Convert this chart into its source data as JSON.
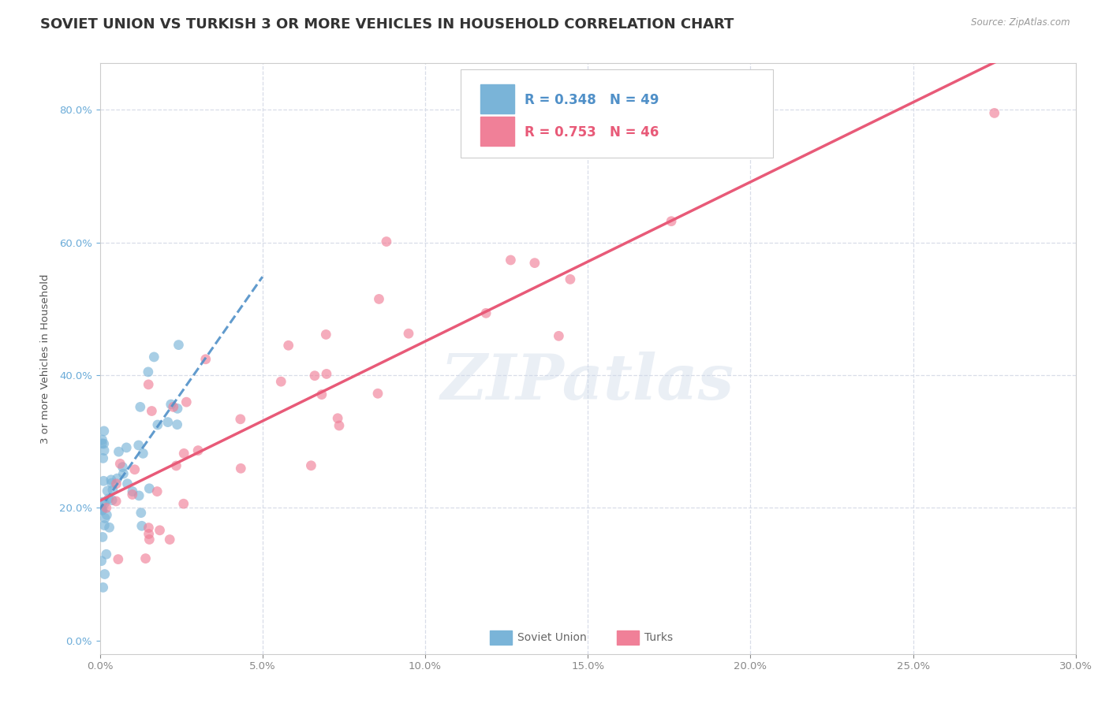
{
  "title": "SOVIET UNION VS TURKISH 3 OR MORE VEHICLES IN HOUSEHOLD CORRELATION CHART",
  "source": "Source: ZipAtlas.com",
  "ylabel": "3 or more Vehicles in Household",
  "xlim": [
    0.0,
    30.0
  ],
  "ylim": [
    -2.0,
    87.0
  ],
  "soviet_R": 0.348,
  "soviet_N": 49,
  "turks_R": 0.753,
  "turks_N": 46,
  "soviet_color": "#7ab4d8",
  "turks_color": "#f08098",
  "soviet_line_color": "#5090c8",
  "turks_line_color": "#e85a78",
  "grid_color": "#d8dde8",
  "background_color": "#ffffff",
  "title_fontsize": 13,
  "watermark_text": "ZIPatlas"
}
